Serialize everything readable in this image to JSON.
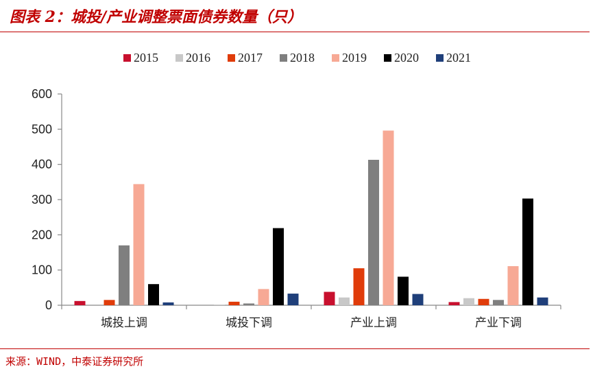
{
  "title": "图表 2：城投/产业调整票面债券数量（只）",
  "source": "来源：WIND，中泰证券研究所",
  "colors": {
    "accent": "#c00000",
    "2015": "#c8102e",
    "2016": "#c8c8c8",
    "2017": "#e03c0a",
    "2018": "#7f7f7f",
    "2019": "#f7a995",
    "2020": "#000000",
    "2021": "#1f3f7a"
  },
  "chart_data": {
    "type": "bar",
    "categories": [
      "城投上调",
      "城投下调",
      "产业上调",
      "产业下调"
    ],
    "series": [
      {
        "name": "2015",
        "values": [
          12,
          0,
          38,
          9
        ]
      },
      {
        "name": "2016",
        "values": [
          0,
          2,
          22,
          20
        ]
      },
      {
        "name": "2017",
        "values": [
          15,
          10,
          105,
          18
        ]
      },
      {
        "name": "2018",
        "values": [
          170,
          5,
          413,
          15
        ]
      },
      {
        "name": "2019",
        "values": [
          344,
          46,
          496,
          111
        ]
      },
      {
        "name": "2020",
        "values": [
          60,
          219,
          81,
          303
        ]
      },
      {
        "name": "2021",
        "values": [
          8,
          33,
          32,
          22
        ]
      }
    ],
    "yticks": [
      0,
      100,
      200,
      300,
      400,
      500,
      600
    ],
    "ylim": [
      0,
      600
    ],
    "grid": false,
    "legend_position": "top"
  }
}
